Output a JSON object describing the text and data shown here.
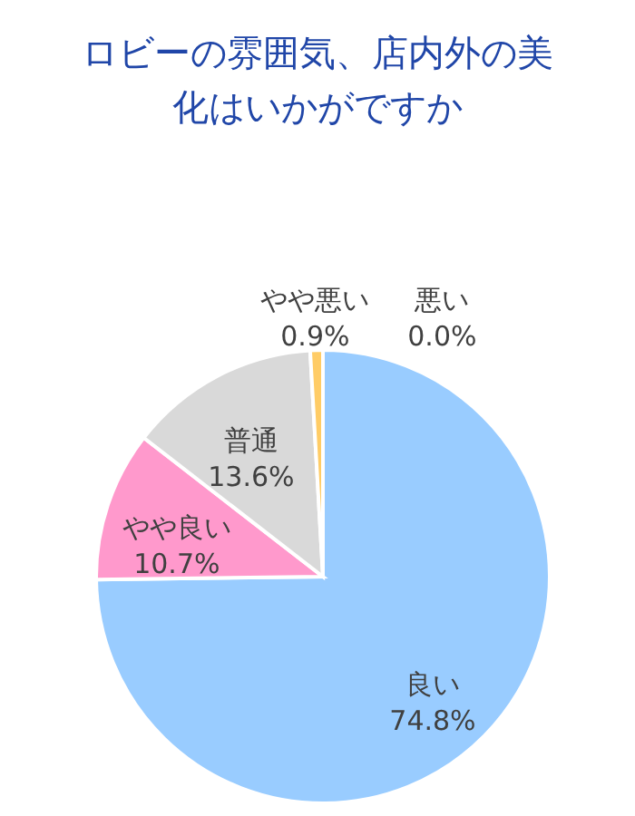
{
  "chart_data": {
    "type": "pie",
    "title": "ロビーの雰囲気、店内外の美化はいかがですか",
    "categories": [
      "良い",
      "やや良い",
      "普通",
      "やや悪い",
      "悪い"
    ],
    "values": [
      74.8,
      10.7,
      13.6,
      0.9,
      0.0
    ],
    "value_labels": [
      "74.8%",
      "10.7%",
      "13.6%",
      "0.9%",
      "0.0%"
    ],
    "colors": [
      "#99ccff",
      "#ff99cc",
      "#d9d9d9",
      "#ffcc66",
      "#ff9966"
    ]
  }
}
